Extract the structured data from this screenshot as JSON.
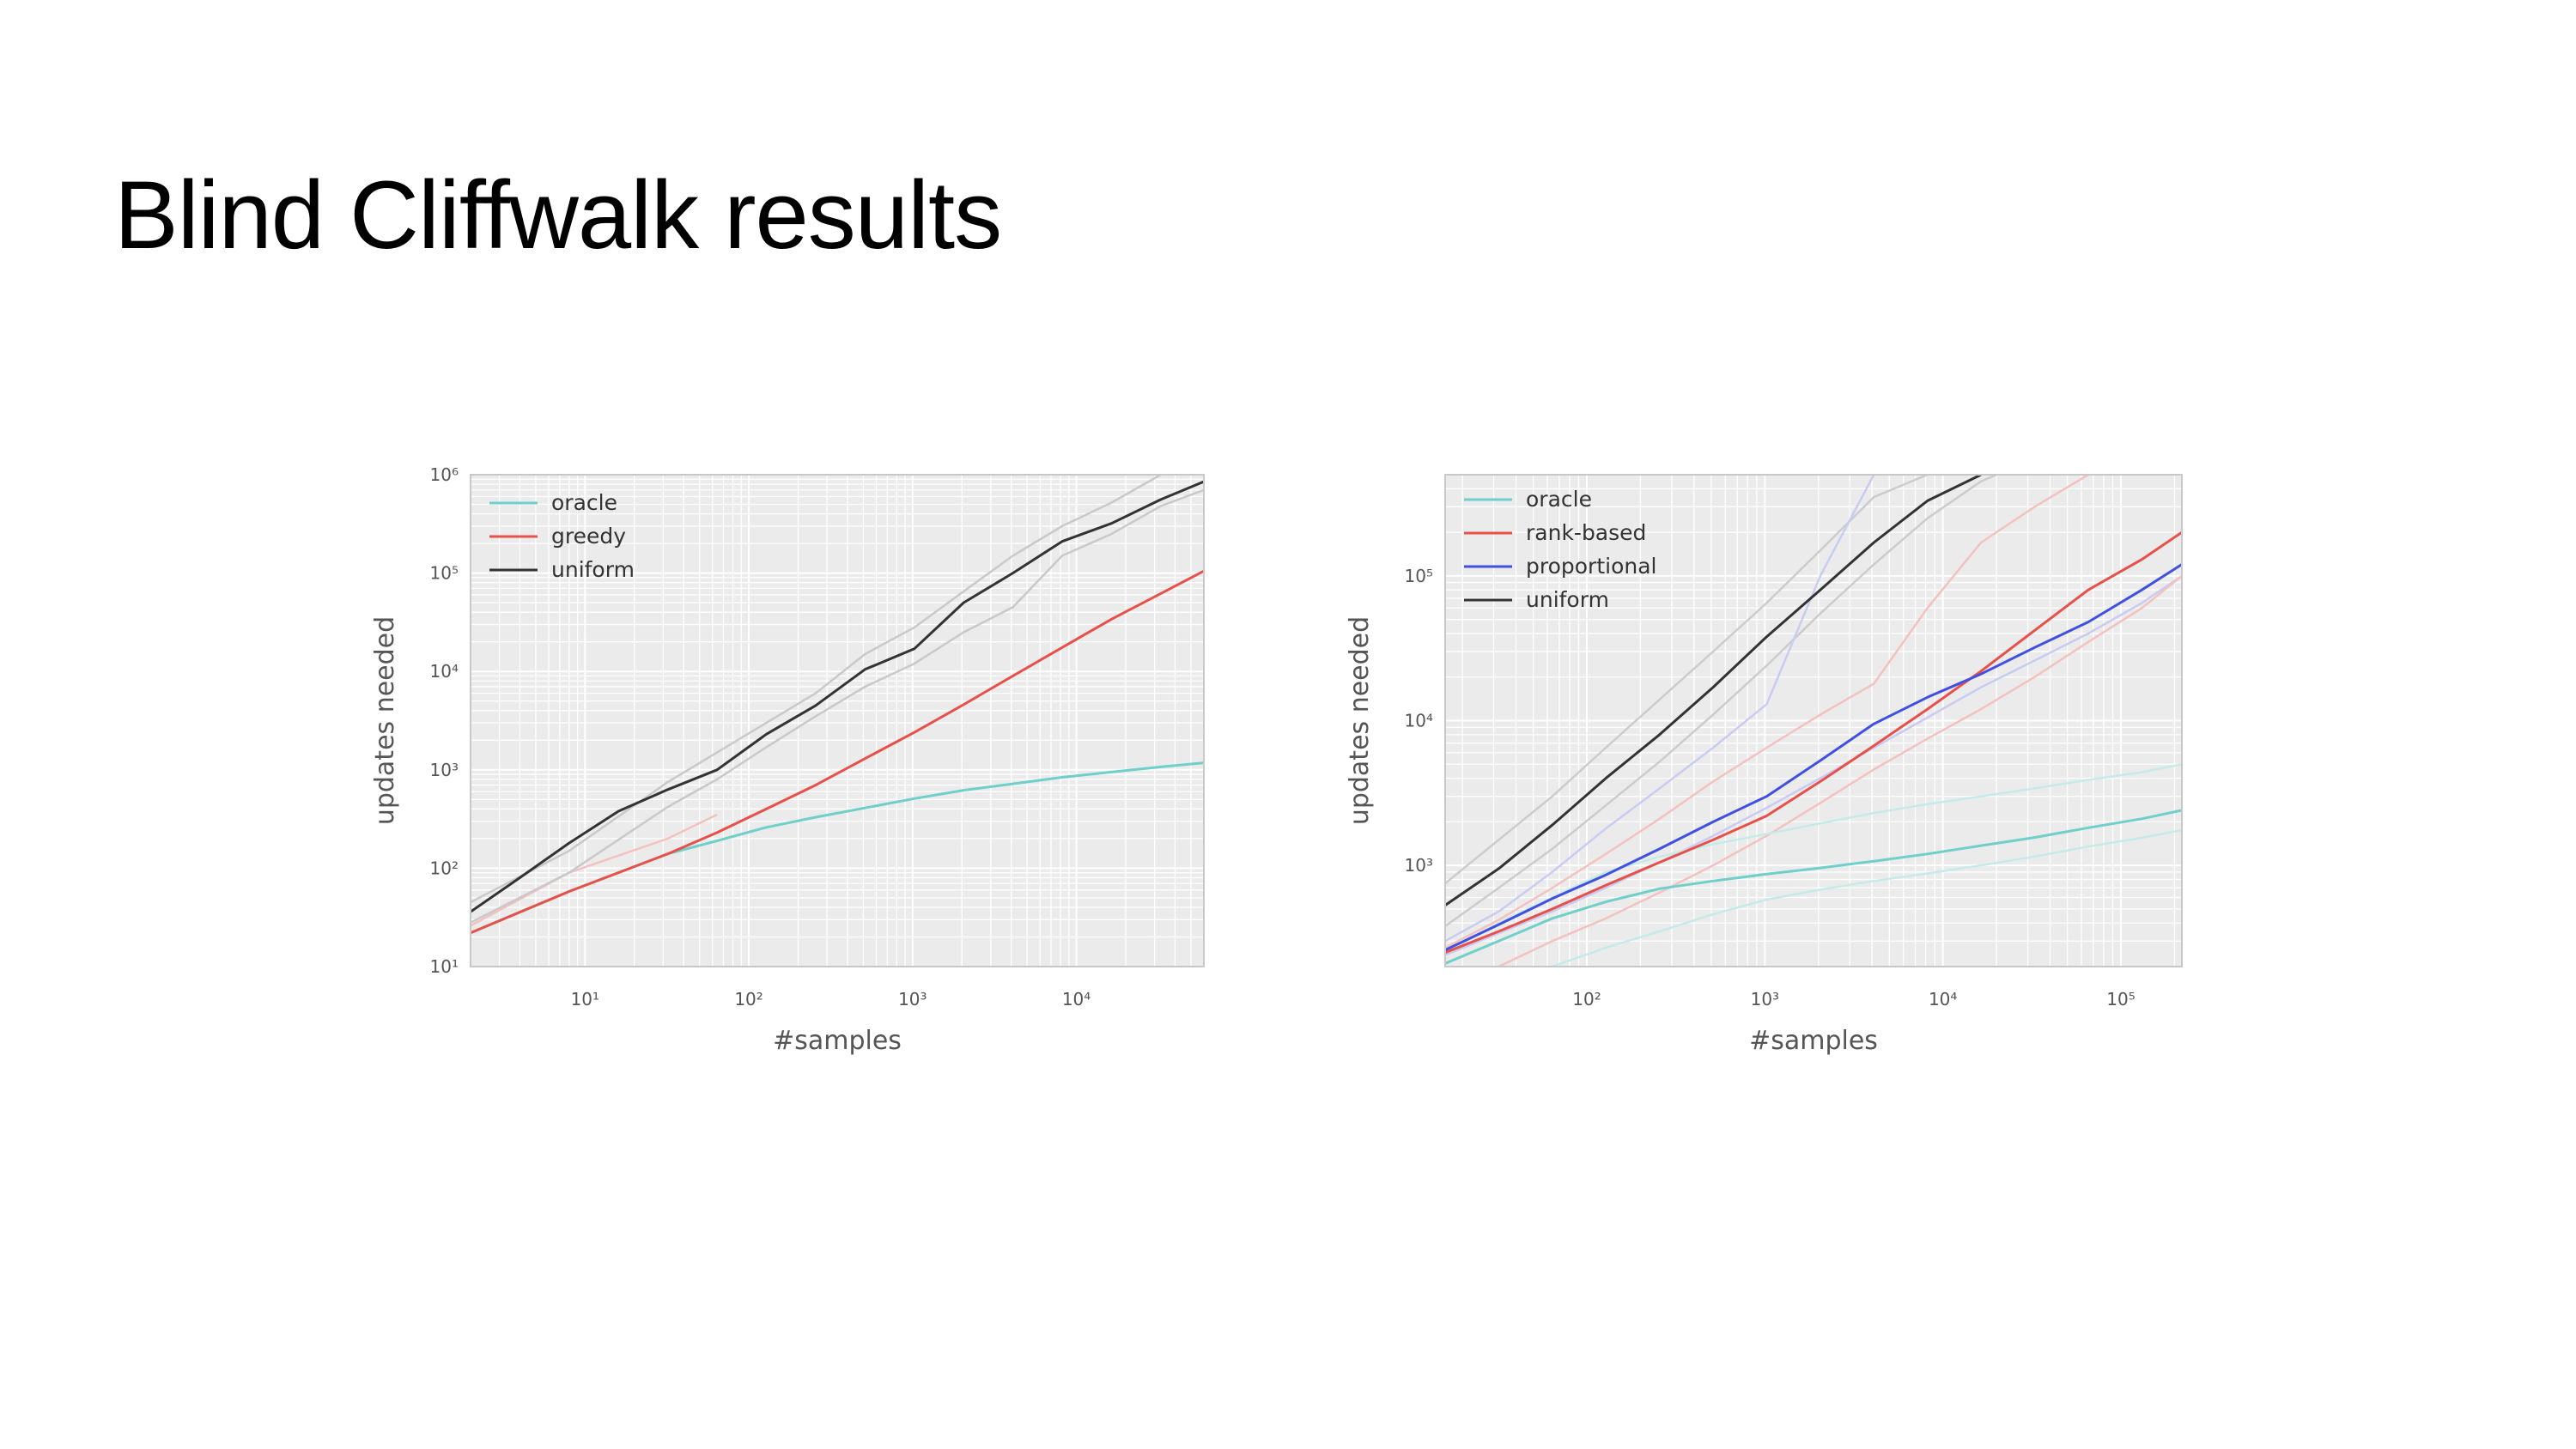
{
  "slide": {
    "title": "Blind Cliffwalk results"
  },
  "chart_data": [
    {
      "type": "line",
      "title": "",
      "xlabel": "#samples",
      "ylabel": "updates needed",
      "x_scale": "log",
      "y_scale": "log",
      "xlim": [
        2,
        60000
      ],
      "ylim": [
        10,
        1000000
      ],
      "x_ticks": [
        10,
        100,
        1000,
        10000
      ],
      "y_ticks": [
        10,
        100,
        1000,
        10000,
        100000,
        1000000
      ],
      "grid": true,
      "legend_position": "top-left",
      "series": [
        {
          "name": "oracle",
          "color": "#6fcfc9",
          "x": [
            2,
            8,
            32,
            64,
            128,
            256,
            512,
            1024,
            2048,
            4096,
            8192,
            16384,
            32768,
            60000
          ],
          "y": [
            22,
            58,
            140,
            190,
            260,
            330,
            410,
            510,
            620,
            720,
            840,
            950,
            1070,
            1180
          ]
        },
        {
          "name": "greedy",
          "color": "#e8504a",
          "x": [
            2,
            8,
            32,
            64,
            128,
            256,
            512,
            1024,
            2048,
            4096,
            8192,
            16384,
            32768,
            60000
          ],
          "y": [
            22,
            58,
            140,
            230,
            400,
            700,
            1300,
            2400,
            4600,
            9000,
            17500,
            34000,
            62000,
            105000
          ]
        },
        {
          "name": "uniform",
          "color": "#333333",
          "x": [
            2,
            4,
            8,
            16,
            32,
            64,
            128,
            256,
            512,
            1024,
            2048,
            4096,
            8192,
            16384,
            32768,
            60000
          ],
          "y": [
            36,
            80,
            180,
            380,
            630,
            1000,
            2300,
            4500,
            10500,
            17000,
            50000,
            100000,
            210000,
            320000,
            560000,
            850000
          ]
        }
      ],
      "variance_bands": [
        {
          "series": "greedy",
          "bound": "upper",
          "color": "#f3c2bf",
          "x": [
            2,
            8,
            32,
            64
          ],
          "y": [
            26,
            90,
            200,
            350
          ]
        },
        {
          "series": "uniform",
          "bound": "upper",
          "color": "#c9c9c9",
          "x": [
            2,
            8,
            32,
            64,
            128,
            256,
            512,
            1024,
            2048,
            4096,
            8192,
            16384,
            32768
          ],
          "y": [
            45,
            150,
            750,
            1500,
            3000,
            6000,
            15000,
            28000,
            65000,
            150000,
            300000,
            520000,
            1000000
          ]
        },
        {
          "series": "uniform",
          "bound": "lower",
          "color": "#c9c9c9",
          "x": [
            2,
            8,
            32,
            64,
            128,
            256,
            512,
            1024,
            2048,
            4096,
            8192,
            16384,
            32768,
            60000
          ],
          "y": [
            28,
            90,
            420,
            800,
            1700,
            3500,
            7000,
            12000,
            25000,
            45000,
            150000,
            250000,
            480000,
            700000
          ]
        }
      ]
    },
    {
      "type": "line",
      "title": "",
      "xlabel": "#samples",
      "ylabel": "updates needed",
      "x_scale": "log",
      "y_scale": "log",
      "xlim": [
        16,
        220000
      ],
      "ylim": [
        200,
        500000
      ],
      "x_ticks": [
        100,
        1000,
        10000,
        100000
      ],
      "y_ticks": [
        1000,
        10000,
        100000
      ],
      "grid": true,
      "legend_position": "top-left",
      "series": [
        {
          "name": "oracle",
          "color": "#6fcfc9",
          "x": [
            16,
            32,
            64,
            128,
            256,
            512,
            1024,
            2048,
            4096,
            8192,
            16384,
            32768,
            65536,
            131072,
            220000
          ],
          "y": [
            210,
            300,
            430,
            560,
            690,
            780,
            870,
            960,
            1070,
            1200,
            1370,
            1560,
            1820,
            2100,
            2400
          ]
        },
        {
          "name": "rank-based",
          "color": "#e8504a",
          "x": [
            16,
            32,
            64,
            128,
            256,
            512,
            1024,
            2048,
            4096,
            8192,
            16384,
            32768,
            65536,
            131072,
            220000
          ],
          "y": [
            250,
            350,
            500,
            730,
            1050,
            1500,
            2200,
            3800,
            6700,
            12000,
            22000,
            42000,
            80000,
            130000,
            200000
          ]
        },
        {
          "name": "proportional",
          "color": "#4050e0",
          "x": [
            16,
            32,
            64,
            128,
            256,
            512,
            1024,
            2048,
            4096,
            8192,
            16384,
            32768,
            65536,
            131072,
            220000
          ],
          "y": [
            260,
            390,
            590,
            860,
            1300,
            2000,
            3000,
            5300,
            9500,
            14500,
            21000,
            32000,
            48000,
            80000,
            120000
          ]
        },
        {
          "name": "uniform",
          "color": "#333333",
          "x": [
            16,
            32,
            64,
            128,
            256,
            512,
            1024,
            2048,
            4096,
            8192,
            16384
          ],
          "y": [
            530,
            950,
            1900,
            4000,
            8000,
            17000,
            38000,
            80000,
            170000,
            330000,
            500000
          ]
        }
      ],
      "variance_bands": [
        {
          "series": "uniform",
          "bound": "upper",
          "color": "#cccccc",
          "x": [
            16,
            32,
            64,
            128,
            256,
            512,
            1024,
            2048,
            4096,
            8192
          ],
          "y": [
            750,
            1500,
            3000,
            6500,
            14000,
            30000,
            65000,
            150000,
            350000,
            500000
          ]
        },
        {
          "series": "uniform",
          "bound": "lower",
          "color": "#cccccc",
          "x": [
            16,
            32,
            64,
            128,
            256,
            512,
            1024,
            2048,
            4096,
            8192,
            16384,
            20000
          ],
          "y": [
            380,
            700,
            1300,
            2600,
            5200,
            11000,
            24000,
            55000,
            120000,
            250000,
            450000,
            500000
          ]
        },
        {
          "series": "proportional",
          "bound": "upper",
          "color": "#c9ccf2",
          "x": [
            16,
            32,
            64,
            128,
            256,
            512,
            1024,
            2048,
            4096
          ],
          "y": [
            300,
            480,
            900,
            1800,
            3400,
            6500,
            13000,
            100000,
            500000
          ]
        },
        {
          "series": "proportional",
          "bound": "lower",
          "color": "#c9ccf2",
          "x": [
            16,
            32,
            64,
            128,
            256,
            512,
            1024,
            2048,
            4096,
            8192,
            16384,
            32768,
            65536,
            131072,
            220000
          ],
          "y": [
            240,
            340,
            480,
            700,
            1050,
            1600,
            2500,
            4000,
            6500,
            10500,
            17000,
            26000,
            40000,
            65000,
            100000
          ]
        },
        {
          "series": "rank-based",
          "bound": "upper",
          "color": "#f3c2bf",
          "x": [
            16,
            32,
            64,
            128,
            256,
            512,
            1024,
            2048,
            4096,
            8192,
            16384,
            32768,
            65536
          ],
          "y": [
            270,
            420,
            700,
            1200,
            2100,
            3800,
            6500,
            11000,
            18000,
            60000,
            170000,
            300000,
            500000
          ]
        },
        {
          "series": "rank-based",
          "bound": "lower",
          "color": "#f3c2bf",
          "x": [
            32,
            64,
            128,
            256,
            512,
            1024,
            2048,
            4096,
            8192,
            16384,
            32768,
            65536,
            131072,
            220000
          ],
          "y": [
            200,
            300,
            430,
            650,
            1000,
            1600,
            2700,
            4600,
            7500,
            12000,
            20000,
            35000,
            60000,
            100000
          ]
        },
        {
          "series": "oracle",
          "bound": "upper",
          "color": "#c5ebe8",
          "x": [
            16,
            32,
            64,
            128,
            256,
            512,
            1024,
            2048,
            4096,
            8192,
            16384,
            32768,
            65536,
            131072,
            220000
          ],
          "y": [
            250,
            400,
            600,
            900,
            1150,
            1400,
            1650,
            1950,
            2300,
            2650,
            3000,
            3400,
            3900,
            4400,
            5000
          ]
        },
        {
          "series": "oracle",
          "bound": "lower",
          "color": "#c5ebe8",
          "x": [
            64,
            128,
            256,
            512,
            1024,
            2048,
            4096,
            8192,
            16384,
            32768,
            65536,
            131072,
            220000
          ],
          "y": [
            200,
            270,
            350,
            460,
            580,
            680,
            780,
            880,
            1000,
            1150,
            1350,
            1550,
            1750
          ]
        }
      ]
    }
  ]
}
